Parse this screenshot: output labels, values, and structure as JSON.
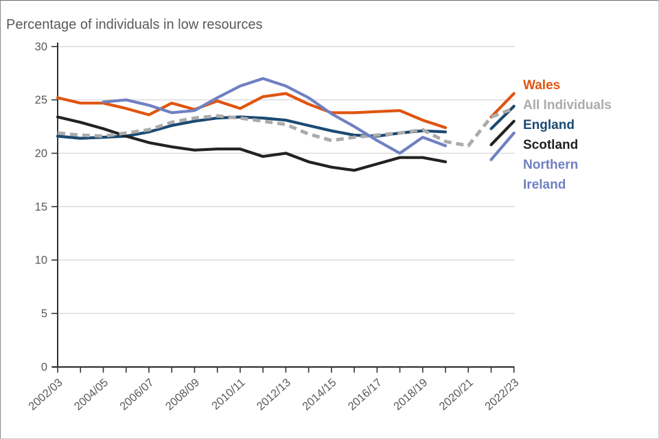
{
  "chart_title": "Percentage of individuals in low resources",
  "chart_data": {
    "type": "line",
    "title": "Percentage of individuals in low resources",
    "xlabel": "",
    "ylabel": "",
    "ylim": [
      0,
      30
    ],
    "y_ticks": [
      0,
      5,
      10,
      15,
      20,
      25,
      30
    ],
    "grid": "horizontal",
    "legend_position": "right",
    "categories": [
      "2002/03",
      "2003/04",
      "2004/05",
      "2005/06",
      "2006/07",
      "2007/08",
      "2008/09",
      "2009/10",
      "2010/11",
      "2011/12",
      "2012/13",
      "2013/14",
      "2014/15",
      "2015/16",
      "2016/17",
      "2017/18",
      "2018/19",
      "2019/20",
      "2020/21",
      "2021/22",
      "2022/23"
    ],
    "x_tick_labels_shown": [
      "2002/03",
      "2004/05",
      "2006/07",
      "2008/09",
      "2010/11",
      "2012/13",
      "2014/15",
      "2016/17",
      "2018/19",
      "2020/21",
      "2022/23"
    ],
    "note": "Solid country series have no data point for 2020/21 (gap in lines); All Individuals is continuous.",
    "series": [
      {
        "name": "Wales",
        "legend_label": "Wales",
        "color": "#E0540F",
        "dashed": false,
        "values": [
          25.2,
          24.7,
          24.7,
          24.2,
          23.6,
          24.7,
          24.1,
          24.9,
          24.2,
          25.3,
          25.6,
          24.6,
          23.8,
          23.8,
          23.9,
          24.0,
          23.1,
          22.4,
          null,
          23.4,
          25.6
        ]
      },
      {
        "name": "All Individuals",
        "legend_label": "All Individuals",
        "color": "#ABABAB",
        "dashed": true,
        "values": [
          21.9,
          21.7,
          21.6,
          21.9,
          22.2,
          22.9,
          23.3,
          23.5,
          23.3,
          23.0,
          22.7,
          21.8,
          21.2,
          21.5,
          21.7,
          21.9,
          22.2,
          21.1,
          20.7,
          23.4,
          24.2
        ]
      },
      {
        "name": "England",
        "legend_label": "England",
        "color": "#1B4A73",
        "dashed": false,
        "values": [
          21.6,
          21.4,
          21.5,
          21.6,
          22.0,
          22.6,
          23.0,
          23.3,
          23.4,
          23.3,
          23.1,
          22.6,
          22.1,
          21.7,
          21.6,
          21.9,
          22.1,
          22.0,
          null,
          22.3,
          24.4
        ]
      },
      {
        "name": "Scotland",
        "legend_label": "Scotland",
        "color": "#222222",
        "dashed": false,
        "values": [
          23.4,
          22.9,
          22.3,
          21.6,
          21.0,
          20.6,
          20.3,
          20.4,
          20.4,
          19.7,
          20.0,
          19.2,
          18.7,
          18.4,
          19.0,
          19.6,
          19.6,
          19.2,
          null,
          20.8,
          23.0
        ]
      },
      {
        "name": "Northern Ireland",
        "legend_label": "Northern\nIreland",
        "color": "#7080C2",
        "dashed": false,
        "values": [
          null,
          null,
          24.8,
          25.0,
          24.5,
          23.8,
          24.0,
          25.2,
          26.3,
          27.0,
          26.3,
          25.2,
          23.7,
          22.5,
          21.2,
          20.0,
          21.5,
          20.7,
          null,
          19.4,
          21.9
        ]
      }
    ],
    "colors": {
      "axis": "#333333",
      "gridline": "#D9D9D9",
      "tick_label": "#595959",
      "title": "#595959"
    }
  }
}
